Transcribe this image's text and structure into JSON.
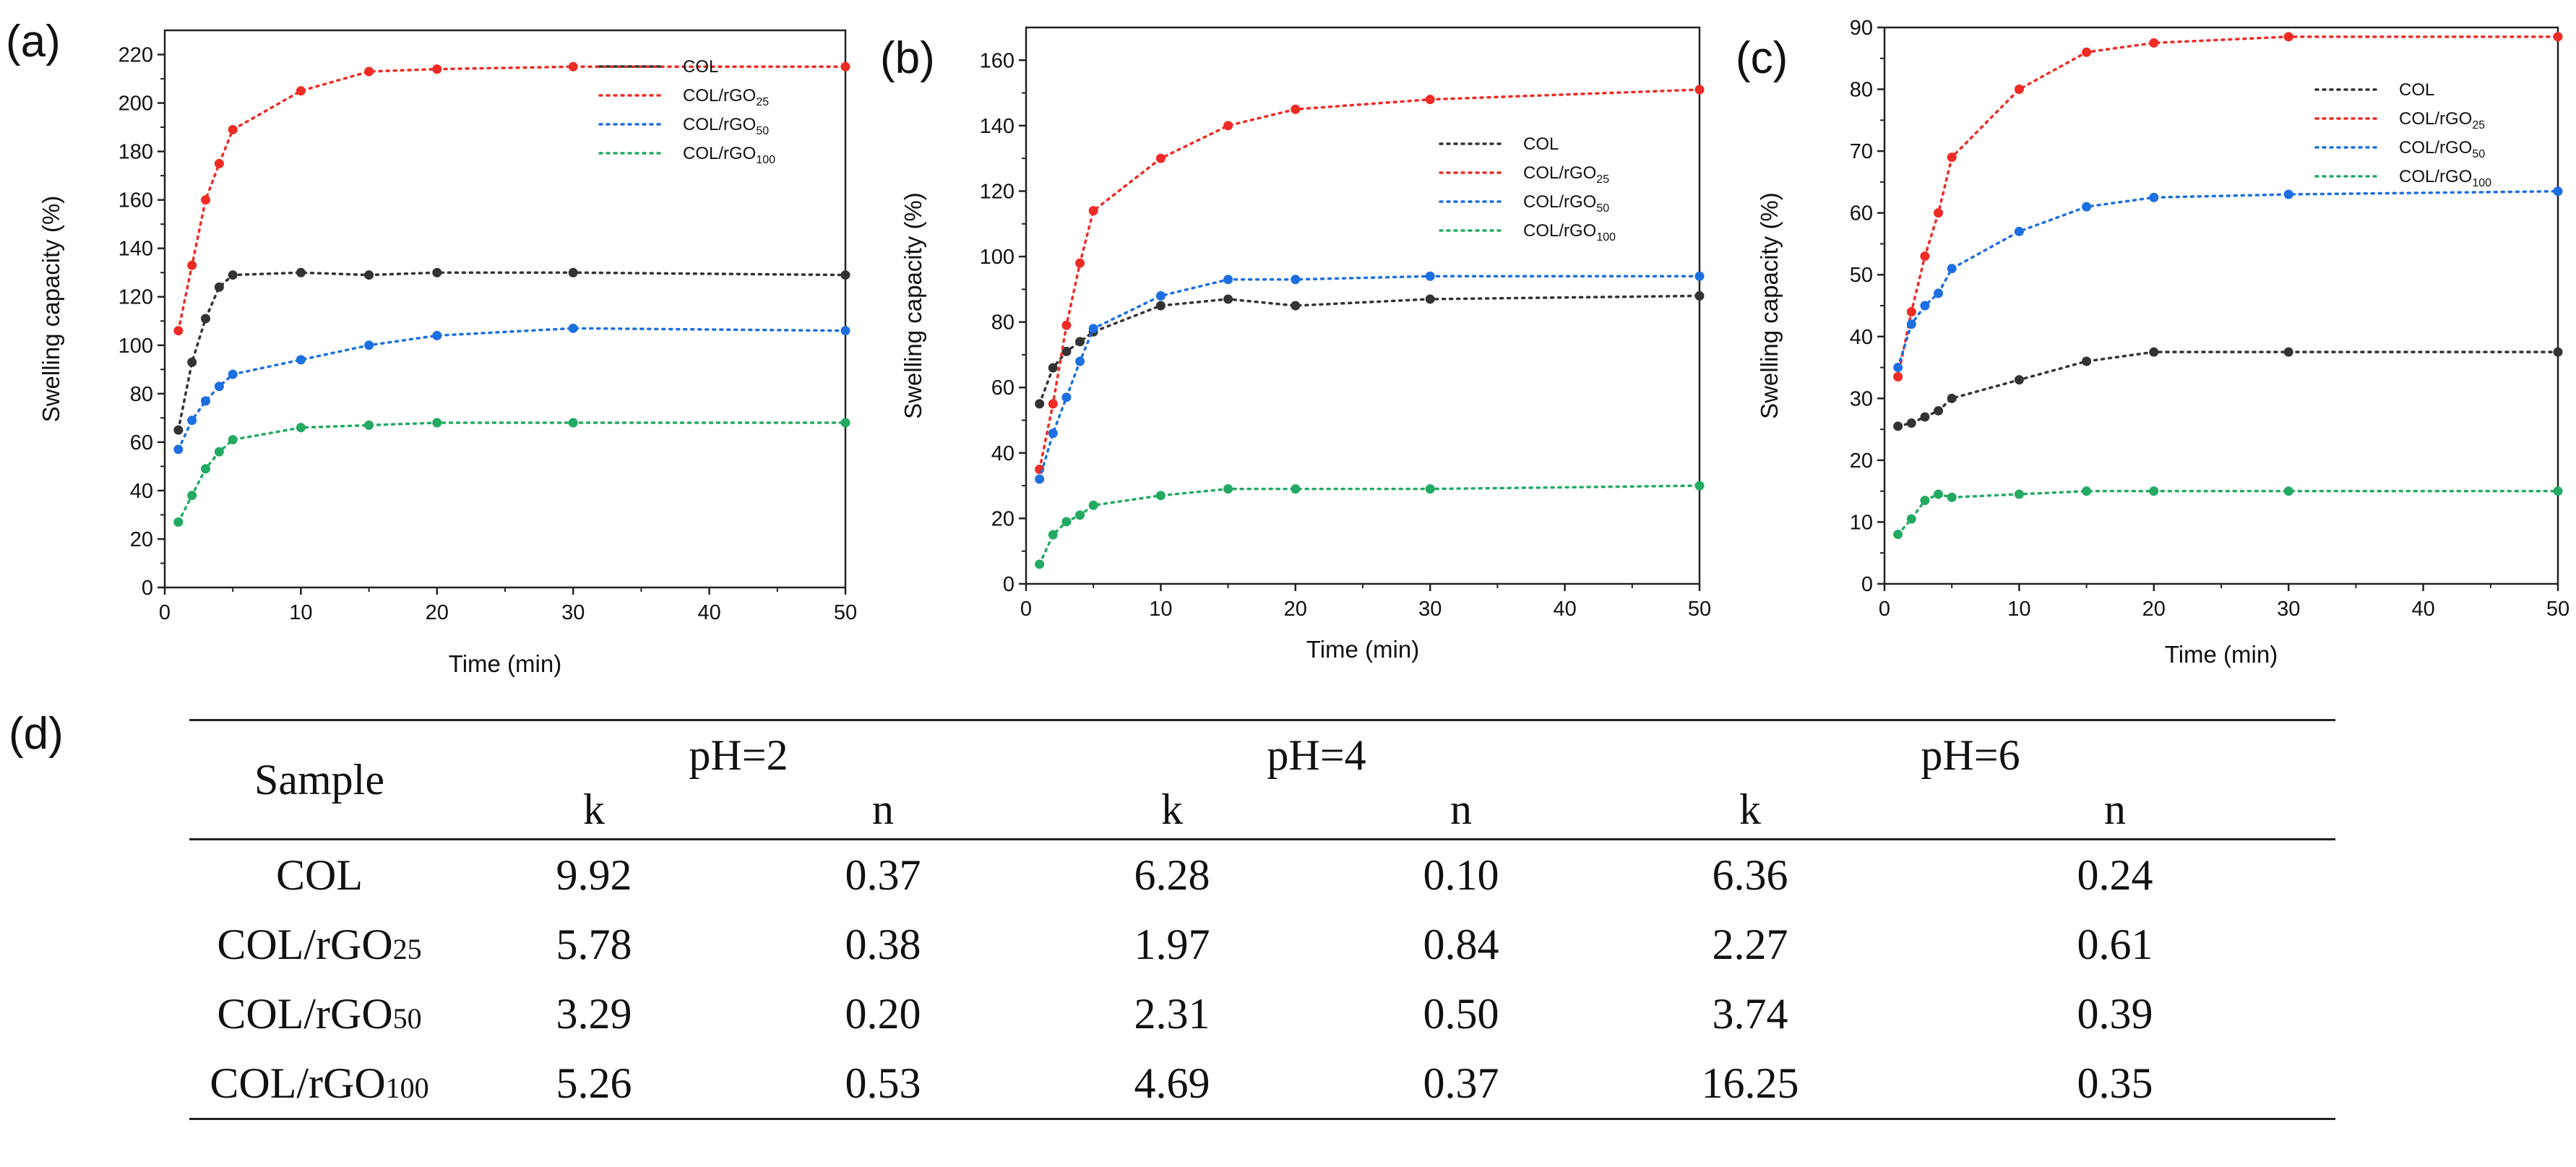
{
  "panel_labels": [
    "(a)",
    "(b)",
    "(c)",
    "(d)"
  ],
  "colors": {
    "COL": "#333333",
    "COL/rGO25": "#ee2b24",
    "COL/rGO50": "#1c6fe0",
    "COL/rGO100": "#22aa62"
  },
  "chart_data": [
    {
      "type": "line",
      "panel": "(a)",
      "xlabel": "Time (min)",
      "ylabel": "Swelling capacity (%)",
      "xlim": [
        0,
        50
      ],
      "ylim": [
        0,
        230
      ],
      "xticks": [
        0,
        10,
        20,
        30,
        40,
        50
      ],
      "yticks": [
        0,
        20,
        40,
        60,
        80,
        100,
        120,
        140,
        160,
        180,
        200,
        220
      ],
      "legend_position": "center-right",
      "series": [
        {
          "name": "COL",
          "base": "COL",
          "sub": "",
          "color": "#333333",
          "x": [
            1,
            2,
            3,
            4,
            5,
            10,
            15,
            20,
            30,
            50
          ],
          "y": [
            65,
            93,
            111,
            124,
            129,
            130,
            129,
            130,
            130,
            129
          ]
        },
        {
          "name": "COL/rGO25",
          "base": "COL/rGO",
          "sub": "25",
          "color": "#ee2b24",
          "x": [
            1,
            2,
            3,
            4,
            5,
            10,
            15,
            20,
            30,
            50
          ],
          "y": [
            106,
            133,
            160,
            175,
            189,
            205,
            213,
            214,
            215,
            215
          ]
        },
        {
          "name": "COL/rGO50",
          "base": "COL/rGO",
          "sub": "50",
          "color": "#1c6fe0",
          "x": [
            1,
            2,
            3,
            4,
            5,
            10,
            15,
            20,
            30,
            50
          ],
          "y": [
            57,
            69,
            77,
            83,
            88,
            94,
            100,
            104,
            107,
            106
          ]
        },
        {
          "name": "COL/rGO100",
          "base": "COL/rGO",
          "sub": "100",
          "color": "#22aa62",
          "x": [
            1,
            2,
            3,
            4,
            5,
            10,
            15,
            20,
            30,
            50
          ],
          "y": [
            27,
            38,
            49,
            56,
            61,
            66,
            67,
            68,
            68,
            68
          ]
        }
      ]
    },
    {
      "type": "line",
      "panel": "(b)",
      "xlabel": "Time (min)",
      "ylabel": "Swelling capacity (%)",
      "xlim": [
        0,
        50
      ],
      "ylim": [
        0,
        170
      ],
      "xticks": [
        0,
        10,
        20,
        30,
        40,
        50
      ],
      "yticks": [
        0,
        20,
        40,
        60,
        80,
        100,
        120,
        140,
        160
      ],
      "legend_position": "top-right",
      "series": [
        {
          "name": "COL",
          "base": "COL",
          "sub": "",
          "color": "#333333",
          "x": [
            1,
            2,
            3,
            4,
            5,
            10,
            15,
            20,
            30,
            50
          ],
          "y": [
            55,
            66,
            71,
            74,
            77,
            85,
            87,
            85,
            87,
            88
          ]
        },
        {
          "name": "COL/rGO25",
          "base": "COL/rGO",
          "sub": "25",
          "color": "#ee2b24",
          "x": [
            1,
            2,
            3,
            4,
            5,
            10,
            15,
            20,
            30,
            50
          ],
          "y": [
            35,
            55,
            79,
            98,
            114,
            130,
            140,
            145,
            148,
            151
          ]
        },
        {
          "name": "COL/rGO50",
          "base": "COL/rGO",
          "sub": "50",
          "color": "#1c6fe0",
          "x": [
            1,
            2,
            3,
            4,
            5,
            10,
            15,
            20,
            30,
            50
          ],
          "y": [
            32,
            46,
            57,
            68,
            78,
            88,
            93,
            93,
            94,
            94
          ]
        },
        {
          "name": "COL/rGO100",
          "base": "COL/rGO",
          "sub": "100",
          "color": "#22aa62",
          "x": [
            1,
            2,
            3,
            4,
            5,
            10,
            15,
            20,
            30,
            50
          ],
          "y": [
            6,
            15,
            19,
            21,
            24,
            27,
            29,
            29,
            29,
            30
          ]
        }
      ]
    },
    {
      "type": "line",
      "panel": "(c)",
      "xlabel": "Time (min)",
      "ylabel": "Swelling capacity (%)",
      "xlim": [
        0,
        50
      ],
      "ylim": [
        0,
        90
      ],
      "xticks": [
        0,
        10,
        20,
        30,
        40,
        50
      ],
      "yticks": [
        0,
        10,
        20,
        30,
        40,
        50,
        60,
        70,
        80,
        90
      ],
      "legend_position": "top-right",
      "series": [
        {
          "name": "COL",
          "base": "COL",
          "sub": "",
          "color": "#333333",
          "x": [
            1,
            2,
            3,
            4,
            5,
            10,
            15,
            20,
            30,
            50
          ],
          "y": [
            25.5,
            26,
            27,
            28,
            30,
            33,
            36,
            37.5,
            37.5,
            37.5
          ]
        },
        {
          "name": "COL/rGO25",
          "base": "COL/rGO",
          "sub": "25",
          "color": "#ee2b24",
          "x": [
            1,
            2,
            3,
            4,
            5,
            10,
            15,
            20,
            30,
            50
          ],
          "y": [
            33.5,
            44,
            53,
            60,
            69,
            80,
            86,
            87.5,
            88.5,
            88.5
          ]
        },
        {
          "name": "COL/rGO50",
          "base": "COL/rGO",
          "sub": "50",
          "color": "#1c6fe0",
          "x": [
            1,
            2,
            3,
            4,
            5,
            10,
            15,
            20,
            30,
            50
          ],
          "y": [
            35,
            42,
            45,
            47,
            51,
            57,
            61,
            62.5,
            63,
            63.5
          ]
        },
        {
          "name": "COL/rGO100",
          "base": "COL/rGO",
          "sub": "100",
          "color": "#22aa62",
          "x": [
            1,
            2,
            3,
            4,
            5,
            10,
            15,
            20,
            30,
            50
          ],
          "y": [
            8,
            10.5,
            13.5,
            14.5,
            14,
            14.5,
            15,
            15,
            15,
            15
          ]
        }
      ]
    }
  ],
  "table": {
    "header": {
      "sample": "Sample",
      "groups": [
        "pH=2",
        "pH=4",
        "pH=6"
      ],
      "cols": [
        "k",
        "n",
        "k",
        "n",
        "k",
        "n"
      ]
    },
    "rows": [
      {
        "base": "COL",
        "sub": "",
        "values": [
          "9.92",
          "0.37",
          "6.28",
          "0.10",
          "6.36",
          "0.24"
        ]
      },
      {
        "base": "COL/rGO",
        "sub": "25",
        "values": [
          "5.78",
          "0.38",
          "1.97",
          "0.84",
          "2.27",
          "0.61"
        ]
      },
      {
        "base": "COL/rGO",
        "sub": "50",
        "values": [
          "3.29",
          "0.20",
          "2.31",
          "0.50",
          "3.74",
          "0.39"
        ]
      },
      {
        "base": "COL/rGO",
        "sub": "100",
        "values": [
          "5.26",
          "0.53",
          "4.69",
          "0.37",
          "16.25",
          "0.35"
        ]
      }
    ]
  }
}
